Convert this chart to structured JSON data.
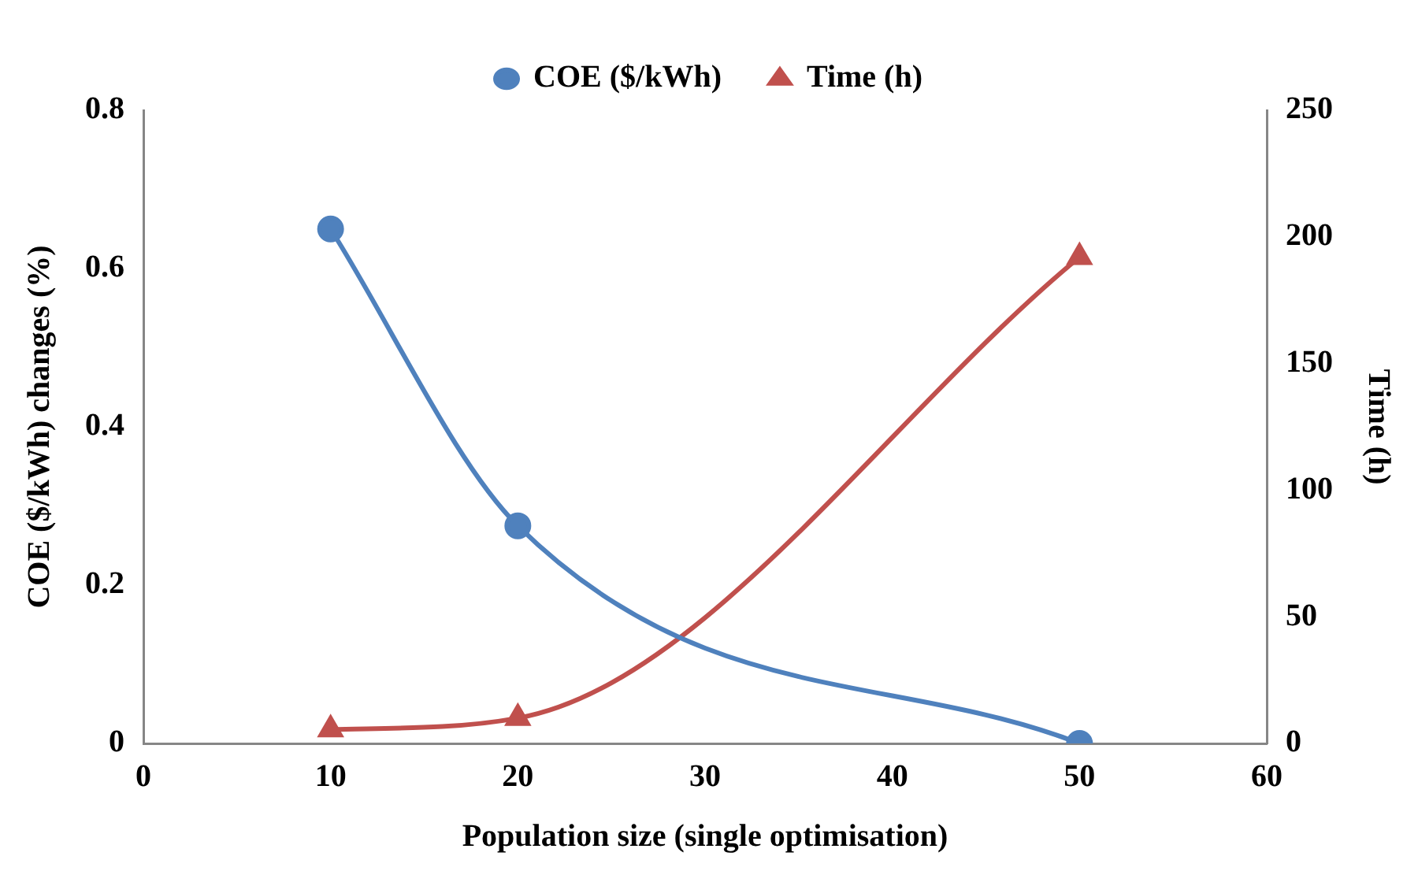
{
  "chart_data": {
    "type": "line",
    "xlabel": "Population size (single optimisation)",
    "ylabel": "COE ($/kWh) changes (%)",
    "y2label": "Time (h)",
    "x": [
      10,
      20,
      50
    ],
    "series": [
      {
        "name": "COE ($/kWh)",
        "color": "#4f81bd",
        "values": [
          0.65,
          0.275,
          0
        ],
        "marker": "circle"
      },
      {
        "name": "Time (h)",
        "color": "#c0504d",
        "values": [
          5.5,
          10,
          192
        ],
        "marker": "triangle",
        "axis": "y2"
      }
    ],
    "xlim": [
      0,
      60
    ],
    "xticks": [
      0,
      10,
      20,
      30,
      40,
      50,
      60
    ],
    "ylim": [
      0,
      0.8
    ],
    "yticks": [
      0,
      0.2,
      0.4,
      0.6,
      0.8
    ],
    "y2lim": [
      0,
      250
    ],
    "y2ticks": [
      0,
      50,
      100,
      150,
      200,
      250
    ],
    "grid": false,
    "legend": "top",
    "line_style": "solid"
  }
}
